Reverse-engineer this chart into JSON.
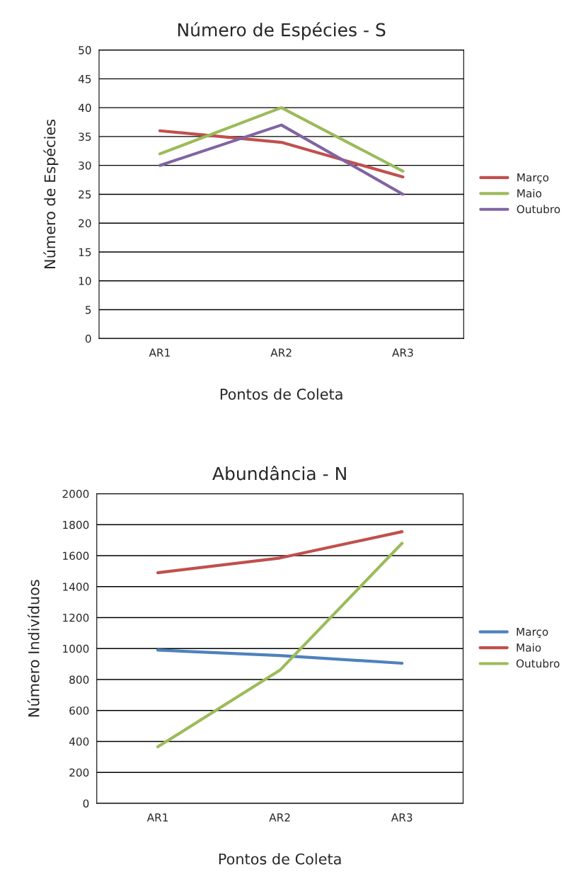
{
  "chart_data": [
    {
      "type": "line",
      "title": "Número de Espécies - S",
      "xlabel": "Pontos de Coleta",
      "ylabel": "Número de Espécies",
      "categories": [
        "AR1",
        "AR2",
        "AR3"
      ],
      "series": [
        {
          "name": "Março",
          "color": "#c0504d",
          "values": [
            36,
            34,
            28
          ]
        },
        {
          "name": "Maio",
          "color": "#9bbb59",
          "values": [
            32,
            40,
            29
          ]
        },
        {
          "name": "Outubro",
          "color": "#8064a2",
          "values": [
            30,
            37,
            25
          ]
        }
      ],
      "ylim": [
        0,
        50
      ],
      "yticks": [
        0,
        5,
        10,
        15,
        20,
        25,
        30,
        35,
        40,
        45,
        50
      ],
      "grid": "y",
      "legend": "right",
      "marker": "none",
      "line_style": "solid"
    },
    {
      "type": "line",
      "title": "Abundância - N",
      "xlabel": "Pontos de Coleta",
      "ylabel": "Número Indivíduos",
      "categories": [
        "AR1",
        "AR2",
        "AR3"
      ],
      "series": [
        {
          "name": "Março",
          "color": "#4f81bd",
          "values": [
            990,
            955,
            905
          ]
        },
        {
          "name": "Maio",
          "color": "#c0504d",
          "values": [
            1490,
            1585,
            1755
          ]
        },
        {
          "name": "Outubro",
          "color": "#9bbb59",
          "values": [
            365,
            860,
            1680
          ]
        }
      ],
      "ylim": [
        0,
        2000
      ],
      "yticks": [
        0,
        200,
        400,
        600,
        800,
        1000,
        1200,
        1400,
        1600,
        1800,
        2000
      ],
      "grid": "y",
      "legend": "right",
      "marker": "none",
      "line_style": "solid"
    }
  ]
}
